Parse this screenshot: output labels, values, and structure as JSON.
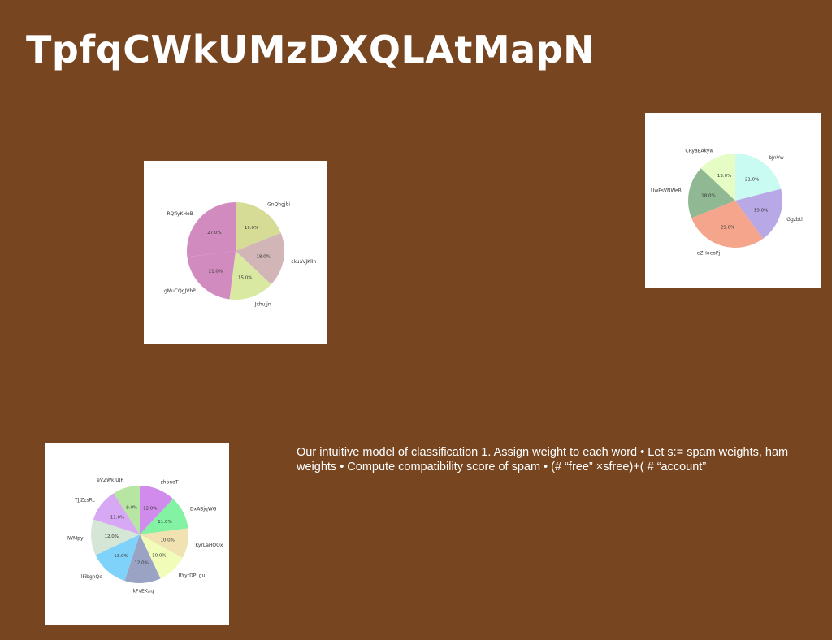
{
  "slide": {
    "title": "TpfqCWkUMzDXQLAtMapN",
    "body": "Our intuitive model of classification 1. Assign weight to each word • Let s:= spam weights, ham weights • Compute compatibility score of spam • (# “free” ×sfree)+( # “account”"
  },
  "chart_data": [
    {
      "type": "pie",
      "categories": [
        "GnQhgjbi",
        "skuaVJKlIn",
        "Jxhujjn",
        "gMuCQgJVbP",
        "RQfiyKHoB"
      ],
      "values": [
        19.0,
        18.0,
        15.0,
        21.0,
        27.0
      ],
      "labels": [
        "19.0%",
        "18.0%",
        "15.0%",
        "21.0%",
        "27.0%"
      ],
      "colors": [
        "#d6db96",
        "#d1b5b7",
        "#d9e9a1",
        "#d28bbe",
        "#d28bbe"
      ]
    },
    {
      "type": "pie",
      "categories": [
        "bJnVw",
        "Ggzbtl",
        "eZHoeoPj",
        "UwFsVNWeR",
        "CRyaEAkyw"
      ],
      "values": [
        21.0,
        19.0,
        29.0,
        18.0,
        13.0
      ],
      "labels": [
        "21.0%",
        "19.0%",
        "29.0%",
        "18.0%",
        "13.0%"
      ],
      "colors": [
        "#c9fbf3",
        "#b9a8e6",
        "#f5a58b",
        "#8fb893",
        "#e5fcc4"
      ]
    },
    {
      "type": "pie",
      "categories": [
        "zhpnoT",
        "DxABjqWG",
        "KyrLaHOOx",
        "RYyrDPLgu",
        "kFvEKxq",
        "lFibgnQe",
        "IWMpy",
        "TJjZzsRc",
        "eVZWkIUJR"
      ],
      "values": [
        12.0,
        11.0,
        10.0,
        10.0,
        12.0,
        13.0,
        12.0,
        11.0,
        9.0
      ],
      "labels": [
        "12.0%",
        "11.0%",
        "10.0%",
        "10.0%",
        "12.0%",
        "13.0%",
        "12.0%",
        "11.0%",
        "9.0%"
      ],
      "colors": [
        "#d18bec",
        "#83f2a3",
        "#f1e2b1",
        "#f1fcb9",
        "#9ba3c4",
        "#7fd3fb",
        "#d5e5d6",
        "#d7a9f5",
        "#b6e6a1"
      ]
    }
  ]
}
